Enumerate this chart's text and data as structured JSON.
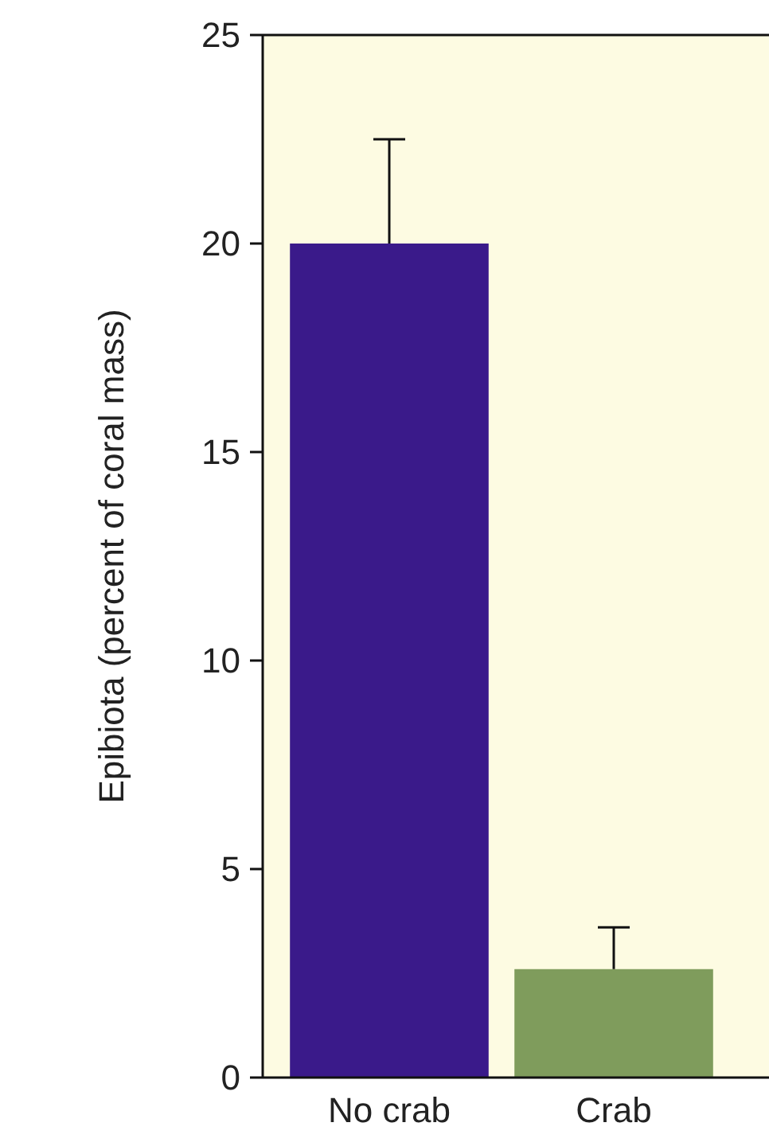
{
  "chart_data": {
    "type": "bar",
    "ylabel": "Epibiota (percent of coral mass)",
    "categories": [
      "No crab",
      "Crab"
    ],
    "values": [
      20,
      2.6
    ],
    "colors": [
      "#3a1a8a",
      "#7f9c5c"
    ],
    "errors": [
      [
        20,
        22.5
      ],
      [
        2.6,
        3.6
      ]
    ],
    "ylim": [
      0,
      25
    ],
    "yticks": [
      0,
      5,
      10,
      15,
      20,
      25
    ]
  }
}
